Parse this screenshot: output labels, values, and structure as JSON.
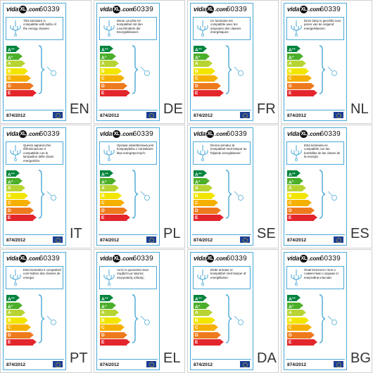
{
  "brand": {
    "logo_prefix": "vida",
    "logo_badge": "XL",
    "logo_suffix": ".com"
  },
  "product_code": "60339",
  "regulation": "874/2012",
  "energy_classes": [
    "A++",
    "A+",
    "A",
    "B",
    "C",
    "D",
    "E"
  ],
  "class_colors": [
    "#00843d",
    "#4caf2a",
    "#b7d433",
    "#f2e500",
    "#f6b000",
    "#ee7a1e",
    "#e3262c"
  ],
  "labels": [
    {
      "lang": "EN",
      "text": "This luminaire is compatible with bulbs of the energy classes:"
    },
    {
      "lang": "DE",
      "text": "Diese Leuchte ist kompatibel mit den Leuchtmitteln der Energieklassen:"
    },
    {
      "lang": "FR",
      "text": "Ce luminaire est compatible avec les ampoules des classes énergétiques:"
    },
    {
      "lang": "NL",
      "text": "Deze lamp is geschikt voor peren van de volgend energieklassen:"
    },
    {
      "lang": "IT",
      "text": "Questo apparecchio d'illuminazione è compatibile con le lampadine delle classi energetiche:"
    },
    {
      "lang": "PL",
      "text": "Oprawa oświetleniowa jest kompatybilna z żarówkami klas energetycznych:"
    },
    {
      "lang": "SE",
      "text": "Denna armatur är kompatibel med lampor av följande energiklasser:"
    },
    {
      "lang": "ES",
      "text": "Esta luminaria es compatible con las bombillas de las clases de la energía:"
    },
    {
      "lang": "PT",
      "text": "Esta luminária é compatível com bulbos das classes de energia:"
    },
    {
      "lang": "EL",
      "text": "Αυτό το φωτιστικό είναι συμβατό με λάμπες ενεργειακής κλάσης:"
    },
    {
      "lang": "DA",
      "text": "Dette armatur er kompatibel med lamper af energiklasse:"
    },
    {
      "lang": "BG",
      "text": "Осветителното тяло е съвместимо с крушки от енергийни класове:"
    }
  ]
}
